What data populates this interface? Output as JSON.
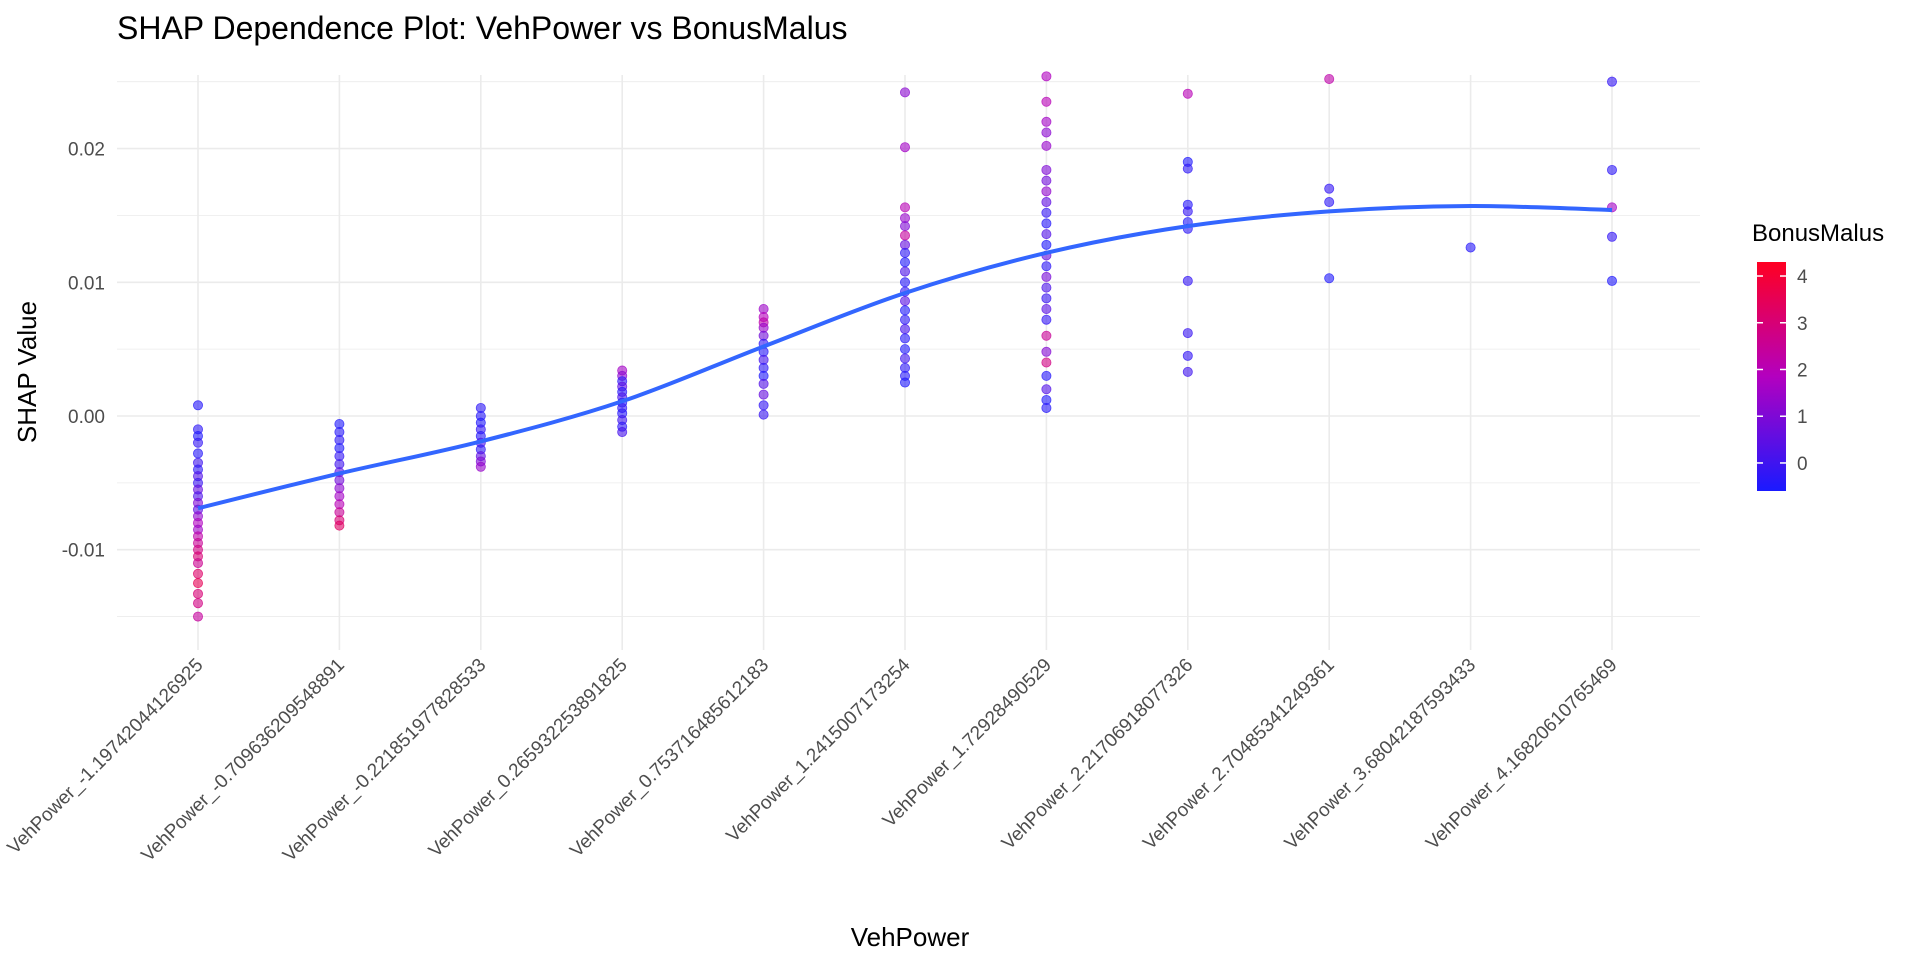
{
  "chart_data": {
    "type": "scatter",
    "title": "SHAP Dependence Plot: VehPower vs BonusMalus",
    "xlabel": "VehPower",
    "ylabel": "SHAP Value",
    "categories": [
      "VehPower_-1.19742044126925",
      "VehPower_-0.709636209548891",
      "VehPower_-0.221851977828533",
      "VehPower_0.265932253891825",
      "VehPower_0.753716485612183",
      "VehPower_1.2415007173254",
      "VehPower_1.72928490529",
      "VehPower_2.21706918077326",
      "VehPower_2.70485341249361",
      "VehPower_3.68042187593433",
      "VehPower_4.16820610765469"
    ],
    "ylim": [
      -0.0175,
      0.0255
    ],
    "y_ticks": [
      -0.01,
      0.0,
      0.01,
      0.02
    ],
    "y_tick_labels": [
      "-0.01",
      "0.00",
      "0.01",
      "0.02"
    ],
    "grid": true,
    "legend": {
      "title": "BonusMalus",
      "placement": "right",
      "min": -0.6,
      "max": 4.3,
      "ticks": [
        0,
        1,
        2,
        3,
        4
      ],
      "tick_labels": [
        "0",
        "1",
        "2",
        "3",
        "4"
      ],
      "color_low": "#1a1aff",
      "color_high": "#ff0022"
    },
    "trend_color": "#3366ff",
    "trend": [
      {
        "x": 0,
        "y": -0.0069
      },
      {
        "x": 1,
        "y": -0.0043
      },
      {
        "x": 2,
        "y": -0.0019
      },
      {
        "x": 3,
        "y": 0.0011
      },
      {
        "x": 4,
        "y": 0.0052
      },
      {
        "x": 5,
        "y": 0.0092
      },
      {
        "x": 6,
        "y": 0.0122
      },
      {
        "x": 7,
        "y": 0.0142
      },
      {
        "x": 8,
        "y": 0.0153
      },
      {
        "x": 9,
        "y": 0.0157
      },
      {
        "x": 10,
        "y": 0.0154
      }
    ],
    "points": [
      {
        "x": 0,
        "y": 0.0008,
        "c": -0.4
      },
      {
        "x": 0,
        "y": -0.001,
        "c": -0.3
      },
      {
        "x": 0,
        "y": -0.0015,
        "c": -0.5
      },
      {
        "x": 0,
        "y": -0.002,
        "c": -0.2
      },
      {
        "x": 0,
        "y": -0.0028,
        "c": -0.4
      },
      {
        "x": 0,
        "y": -0.0035,
        "c": 0.0
      },
      {
        "x": 0,
        "y": -0.004,
        "c": -0.3
      },
      {
        "x": 0,
        "y": -0.0045,
        "c": 0.3
      },
      {
        "x": 0,
        "y": -0.005,
        "c": -0.1
      },
      {
        "x": 0,
        "y": -0.0055,
        "c": 0.6
      },
      {
        "x": 0,
        "y": -0.006,
        "c": 0.2
      },
      {
        "x": 0,
        "y": -0.0065,
        "c": 1.0
      },
      {
        "x": 0,
        "y": -0.007,
        "c": 0.5
      },
      {
        "x": 0,
        "y": -0.0075,
        "c": 1.3
      },
      {
        "x": 0,
        "y": -0.008,
        "c": 1.8
      },
      {
        "x": 0,
        "y": -0.0085,
        "c": 1.5
      },
      {
        "x": 0,
        "y": -0.009,
        "c": 2.2
      },
      {
        "x": 0,
        "y": -0.0095,
        "c": 2.5
      },
      {
        "x": 0,
        "y": -0.01,
        "c": 2.8
      },
      {
        "x": 0,
        "y": -0.0105,
        "c": 3.0
      },
      {
        "x": 0,
        "y": -0.011,
        "c": 2.6
      },
      {
        "x": 0,
        "y": -0.0118,
        "c": 3.2
      },
      {
        "x": 0,
        "y": -0.0125,
        "c": 3.5
      },
      {
        "x": 0,
        "y": -0.0133,
        "c": 3.0
      },
      {
        "x": 0,
        "y": -0.014,
        "c": 2.8
      },
      {
        "x": 0,
        "y": -0.015,
        "c": 2.4
      },
      {
        "x": 1,
        "y": -0.0006,
        "c": -0.5
      },
      {
        "x": 1,
        "y": -0.0012,
        "c": -0.4
      },
      {
        "x": 1,
        "y": -0.0018,
        "c": -0.3
      },
      {
        "x": 1,
        "y": -0.0024,
        "c": -0.5
      },
      {
        "x": 1,
        "y": -0.003,
        "c": -0.2
      },
      {
        "x": 1,
        "y": -0.0036,
        "c": 0.0
      },
      {
        "x": 1,
        "y": -0.0042,
        "c": 0.4
      },
      {
        "x": 1,
        "y": -0.0048,
        "c": 0.8
      },
      {
        "x": 1,
        "y": -0.0054,
        "c": 1.2
      },
      {
        "x": 1,
        "y": -0.006,
        "c": 1.6
      },
      {
        "x": 1,
        "y": -0.0066,
        "c": 2.0
      },
      {
        "x": 1,
        "y": -0.0072,
        "c": 2.5
      },
      {
        "x": 1,
        "y": -0.0078,
        "c": 3.0
      },
      {
        "x": 1,
        "y": -0.0082,
        "c": 3.3
      },
      {
        "x": 2,
        "y": 0.0006,
        "c": -0.3
      },
      {
        "x": 2,
        "y": 0.0,
        "c": -0.4
      },
      {
        "x": 2,
        "y": -0.0005,
        "c": -0.5
      },
      {
        "x": 2,
        "y": -0.001,
        "c": -0.2
      },
      {
        "x": 2,
        "y": -0.0015,
        "c": -0.4
      },
      {
        "x": 2,
        "y": -0.002,
        "c": 0.2
      },
      {
        "x": 2,
        "y": -0.0025,
        "c": -0.3
      },
      {
        "x": 2,
        "y": -0.003,
        "c": 0.5
      },
      {
        "x": 2,
        "y": -0.0034,
        "c": 1.0
      },
      {
        "x": 2,
        "y": -0.0038,
        "c": 1.4
      },
      {
        "x": 3,
        "y": 0.0034,
        "c": 1.6
      },
      {
        "x": 3,
        "y": 0.003,
        "c": 1.2
      },
      {
        "x": 3,
        "y": 0.0026,
        "c": -0.3
      },
      {
        "x": 3,
        "y": 0.0022,
        "c": 0.5
      },
      {
        "x": 3,
        "y": 0.0018,
        "c": -0.4
      },
      {
        "x": 3,
        "y": 0.0014,
        "c": 0.2
      },
      {
        "x": 3,
        "y": 0.001,
        "c": -0.5
      },
      {
        "x": 3,
        "y": 0.0006,
        "c": -0.2
      },
      {
        "x": 3,
        "y": 0.0002,
        "c": -0.4
      },
      {
        "x": 3,
        "y": -0.0003,
        "c": 0.0
      },
      {
        "x": 3,
        "y": -0.0008,
        "c": -0.3
      },
      {
        "x": 3,
        "y": -0.0012,
        "c": 0.1
      },
      {
        "x": 4,
        "y": 0.008,
        "c": 1.5
      },
      {
        "x": 4,
        "y": 0.0074,
        "c": 1.9
      },
      {
        "x": 4,
        "y": 0.007,
        "c": 2.2
      },
      {
        "x": 4,
        "y": 0.0066,
        "c": 1.4
      },
      {
        "x": 4,
        "y": 0.006,
        "c": 0.8
      },
      {
        "x": 4,
        "y": 0.0054,
        "c": -0.2
      },
      {
        "x": 4,
        "y": 0.0048,
        "c": -0.4
      },
      {
        "x": 4,
        "y": 0.0042,
        "c": 0.1
      },
      {
        "x": 4,
        "y": 0.0036,
        "c": -0.3
      },
      {
        "x": 4,
        "y": 0.003,
        "c": -0.5
      },
      {
        "x": 4,
        "y": 0.0024,
        "c": 0.3
      },
      {
        "x": 4,
        "y": 0.0016,
        "c": 0.6
      },
      {
        "x": 4,
        "y": 0.0008,
        "c": -0.2
      },
      {
        "x": 4,
        "y": 0.0001,
        "c": -0.1
      },
      {
        "x": 5,
        "y": 0.0242,
        "c": 1.2
      },
      {
        "x": 5,
        "y": 0.0201,
        "c": 1.6
      },
      {
        "x": 5,
        "y": 0.0156,
        "c": 2.0
      },
      {
        "x": 5,
        "y": 0.0148,
        "c": 1.4
      },
      {
        "x": 5,
        "y": 0.0142,
        "c": 1.0
      },
      {
        "x": 5,
        "y": 0.0135,
        "c": 2.4
      },
      {
        "x": 5,
        "y": 0.0128,
        "c": 0.6
      },
      {
        "x": 5,
        "y": 0.0122,
        "c": -0.3
      },
      {
        "x": 5,
        "y": 0.0115,
        "c": -0.5
      },
      {
        "x": 5,
        "y": 0.0108,
        "c": 0.2
      },
      {
        "x": 5,
        "y": 0.01,
        "c": -0.4
      },
      {
        "x": 5,
        "y": 0.0093,
        "c": -0.2
      },
      {
        "x": 5,
        "y": 0.0086,
        "c": 0.4
      },
      {
        "x": 5,
        "y": 0.0079,
        "c": -0.5
      },
      {
        "x": 5,
        "y": 0.0072,
        "c": -0.3
      },
      {
        "x": 5,
        "y": 0.0065,
        "c": 0.1
      },
      {
        "x": 5,
        "y": 0.0058,
        "c": -0.4
      },
      {
        "x": 5,
        "y": 0.005,
        "c": -0.5
      },
      {
        "x": 5,
        "y": 0.0043,
        "c": 0.0
      },
      {
        "x": 5,
        "y": 0.0036,
        "c": -0.3
      },
      {
        "x": 5,
        "y": 0.003,
        "c": -0.4
      },
      {
        "x": 5,
        "y": 0.0025,
        "c": -0.5
      },
      {
        "x": 6,
        "y": 0.0254,
        "c": 1.8
      },
      {
        "x": 6,
        "y": 0.0235,
        "c": 2.0
      },
      {
        "x": 6,
        "y": 0.022,
        "c": 1.6
      },
      {
        "x": 6,
        "y": 0.0212,
        "c": 1.2
      },
      {
        "x": 6,
        "y": 0.0202,
        "c": 1.4
      },
      {
        "x": 6,
        "y": 0.0184,
        "c": 1.0
      },
      {
        "x": 6,
        "y": 0.0176,
        "c": 0.8
      },
      {
        "x": 6,
        "y": 0.0168,
        "c": 1.3
      },
      {
        "x": 6,
        "y": 0.016,
        "c": 0.5
      },
      {
        "x": 6,
        "y": 0.0152,
        "c": -0.2
      },
      {
        "x": 6,
        "y": 0.0144,
        "c": -0.4
      },
      {
        "x": 6,
        "y": 0.0136,
        "c": 0.3
      },
      {
        "x": 6,
        "y": 0.0128,
        "c": -0.5
      },
      {
        "x": 6,
        "y": 0.012,
        "c": 0.6
      },
      {
        "x": 6,
        "y": 0.0112,
        "c": -0.3
      },
      {
        "x": 6,
        "y": 0.0104,
        "c": 0.9
      },
      {
        "x": 6,
        "y": 0.0096,
        "c": 0.2
      },
      {
        "x": 6,
        "y": 0.0088,
        "c": -0.1
      },
      {
        "x": 6,
        "y": 0.008,
        "c": 0.4
      },
      {
        "x": 6,
        "y": 0.0072,
        "c": -0.2
      },
      {
        "x": 6,
        "y": 0.006,
        "c": 2.5
      },
      {
        "x": 6,
        "y": 0.0048,
        "c": 1.1
      },
      {
        "x": 6,
        "y": 0.004,
        "c": 2.8
      },
      {
        "x": 6,
        "y": 0.003,
        "c": -0.4
      },
      {
        "x": 6,
        "y": 0.002,
        "c": 0.3
      },
      {
        "x": 6,
        "y": 0.0012,
        "c": -0.5
      },
      {
        "x": 6,
        "y": 0.0006,
        "c": -0.4
      },
      {
        "x": 7,
        "y": 0.0241,
        "c": 2.0
      },
      {
        "x": 7,
        "y": 0.019,
        "c": -0.5
      },
      {
        "x": 7,
        "y": 0.0185,
        "c": -0.3
      },
      {
        "x": 7,
        "y": 0.0158,
        "c": -0.4
      },
      {
        "x": 7,
        "y": 0.0153,
        "c": -0.2
      },
      {
        "x": 7,
        "y": 0.0145,
        "c": -0.5
      },
      {
        "x": 7,
        "y": 0.014,
        "c": -0.3
      },
      {
        "x": 7,
        "y": 0.0101,
        "c": -0.2
      },
      {
        "x": 7,
        "y": 0.0062,
        "c": -0.1
      },
      {
        "x": 7,
        "y": 0.0045,
        "c": -0.2
      },
      {
        "x": 7,
        "y": 0.0033,
        "c": 0.0
      },
      {
        "x": 8,
        "y": 0.0252,
        "c": 2.2
      },
      {
        "x": 8,
        "y": 0.017,
        "c": -0.2
      },
      {
        "x": 8,
        "y": 0.016,
        "c": -0.3
      },
      {
        "x": 8,
        "y": 0.0103,
        "c": -0.5
      },
      {
        "x": 9,
        "y": 0.0126,
        "c": -0.4
      },
      {
        "x": 10,
        "y": 0.025,
        "c": -0.2
      },
      {
        "x": 10,
        "y": 0.0184,
        "c": -0.3
      },
      {
        "x": 10,
        "y": 0.0156,
        "c": 1.6
      },
      {
        "x": 10,
        "y": 0.0134,
        "c": -0.2
      },
      {
        "x": 10,
        "y": 0.0101,
        "c": -0.5
      }
    ]
  }
}
